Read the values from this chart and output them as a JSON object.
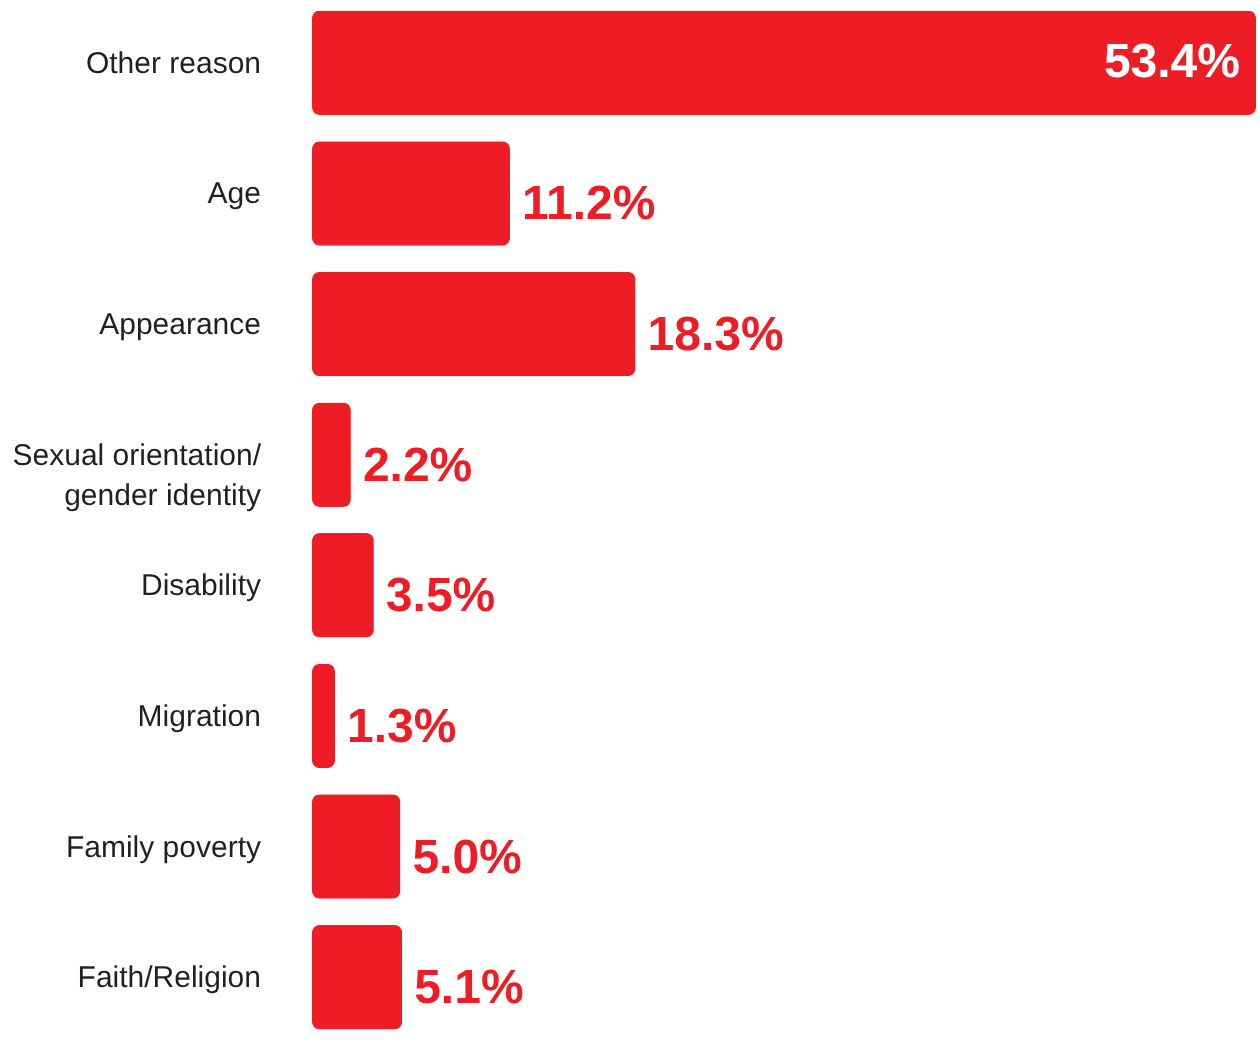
{
  "chart_data": {
    "type": "bar",
    "orientation": "horizontal",
    "categories": [
      "Other reason",
      "Age",
      "Appearance",
      "Sexual orientation/\ngender identity",
      "Disability",
      "Migration",
      "Family poverty",
      "Faith/Religion"
    ],
    "values": [
      53.4,
      11.2,
      18.3,
      2.2,
      3.5,
      1.3,
      5.0,
      5.1
    ],
    "value_labels": [
      "53.4%",
      "11.2%",
      "18.3%",
      "2.2%",
      "3.5%",
      "1.3%",
      "5.0%",
      "5.1%"
    ],
    "color": "#ee1c25",
    "xlim": [
      0,
      53.4
    ],
    "grid": false,
    "tick_labels": "y"
  }
}
